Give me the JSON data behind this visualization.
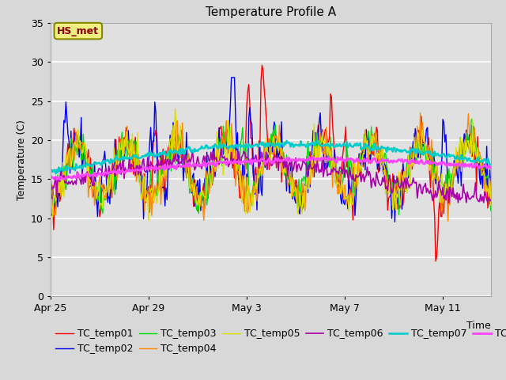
{
  "title": "Temperature Profile A",
  "xlabel": "Time",
  "ylabel": "Temperature (C)",
  "ylim": [
    0,
    35
  ],
  "annotation": "HS_met",
  "series_colors": {
    "TC_temp01": "#ff0000",
    "TC_temp02": "#0000ee",
    "TC_temp03": "#00dd00",
    "TC_temp04": "#ff8800",
    "TC_temp05": "#dddd00",
    "TC_temp06": "#aa00aa",
    "TC_temp07": "#00cccc",
    "TC_temp08": "#ff44ff"
  },
  "x_tick_labels": [
    "Apr 25",
    "Apr 29",
    "May 3",
    "May 7",
    "May 11"
  ],
  "x_tick_positions": [
    0,
    96,
    192,
    288,
    384
  ],
  "fig_bg_color": "#d8d8d8",
  "plot_bg_color": "#e0e0e0",
  "grid_color": "#ffffff",
  "title_fontsize": 11,
  "axis_fontsize": 9,
  "legend_fontsize": 9,
  "n_points": 432
}
